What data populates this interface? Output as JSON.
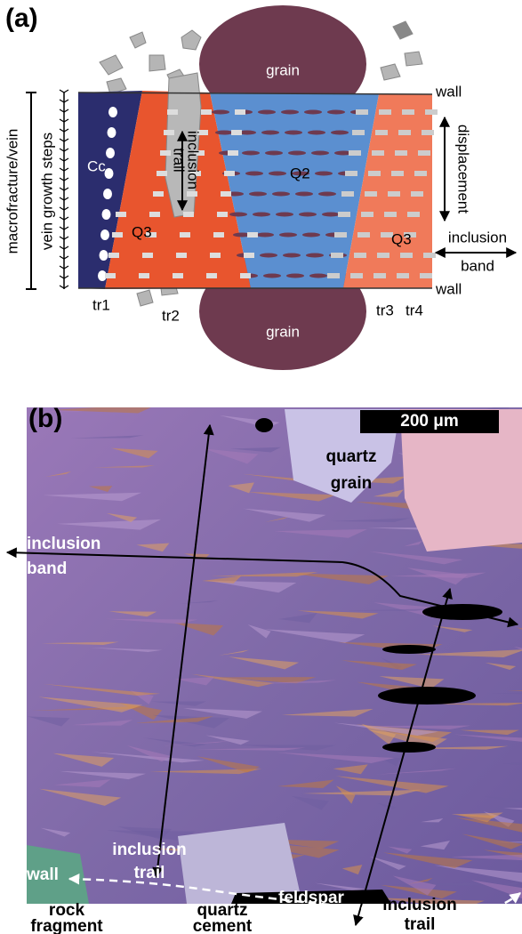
{
  "panel_a": {
    "label": "(a)",
    "grain_top": "grain",
    "grain_bottom": "grain",
    "wall_top": "wall",
    "wall_bottom": "wall",
    "cc": "Cc",
    "q3_left": "Q3",
    "q2": "Q2",
    "q3_right": "Q3",
    "inclusion_trail": [
      "inclusion",
      "trail"
    ],
    "displacement": "displacement",
    "inclusion_band": [
      "inclusion",
      "band"
    ],
    "vein_growth_steps": "vein growth steps",
    "macrofracture": "macrofracture/vein",
    "trails": [
      "tr1",
      "tr2",
      "tr3",
      "tr4"
    ]
  },
  "panel_b": {
    "label": "(b)",
    "scale_bar": "200 μm",
    "quartz_grain": [
      "quartz",
      "grain"
    ],
    "inclusion_band": [
      "inclusion",
      "band"
    ],
    "wall": "wall",
    "inclusion_trail_left": [
      "inclusion",
      "trail"
    ],
    "rock_fragment": [
      "rock",
      "fragment"
    ],
    "quartz_cement": [
      "quartz",
      "cement"
    ],
    "feldspar": "feldspar",
    "inclusion_trail_right": [
      "inclusion",
      "trail"
    ]
  }
}
